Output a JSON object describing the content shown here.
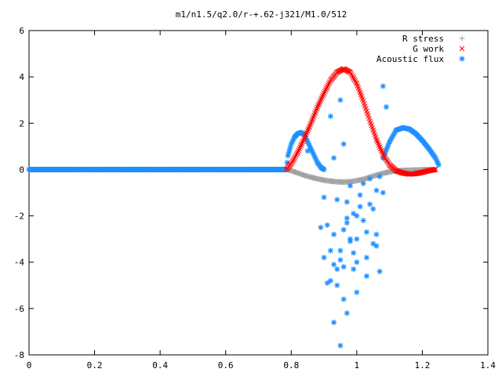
{
  "chart_data": {
    "type": "scatter",
    "title": "m1/n1.5/q2.0/r-+.62-j321/M1.0/512",
    "xlabel": "",
    "ylabel": "",
    "xlim": [
      0,
      1.4
    ],
    "ylim": [
      -8,
      6
    ],
    "x_ticks": [
      "0",
      "0.2",
      "0.4",
      "0.6",
      "0.8",
      "1",
      "1.2",
      "1.4"
    ],
    "y_ticks": [
      "-8",
      "-6",
      "-4",
      "-2",
      "0",
      "2",
      "4",
      "6"
    ],
    "grid": false,
    "legend_position": "top-right",
    "series": [
      {
        "name": "R stress",
        "marker": "plus",
        "color": "#a0a0a0",
        "shape": "baseline-zero-then-dip",
        "points_x": [
          0.0,
          0.785,
          0.8,
          0.82,
          0.84,
          0.86,
          0.88,
          0.9,
          0.92,
          0.94,
          0.96,
          0.98,
          1.0,
          1.02,
          1.04,
          1.06,
          1.08,
          1.1,
          1.12,
          1.14,
          1.16,
          1.18,
          1.2,
          1.22,
          1.24
        ],
        "points_y": [
          0.0,
          0.0,
          -0.05,
          -0.15,
          -0.25,
          -0.33,
          -0.4,
          -0.46,
          -0.5,
          -0.53,
          -0.54,
          -0.53,
          -0.48,
          -0.42,
          -0.33,
          -0.24,
          -0.16,
          -0.1,
          -0.06,
          -0.04,
          -0.03,
          -0.02,
          -0.01,
          0.0,
          0.0
        ]
      },
      {
        "name": "G work",
        "marker": "cross",
        "color": "#ff0000",
        "points_x": [
          0.785,
          0.8,
          0.82,
          0.84,
          0.86,
          0.88,
          0.9,
          0.92,
          0.94,
          0.96,
          0.98,
          1.0,
          1.02,
          1.04,
          1.06,
          1.08,
          1.1,
          1.12,
          1.14,
          1.16,
          1.18,
          1.2,
          1.22,
          1.24
        ],
        "points_y": [
          0.0,
          0.25,
          0.75,
          1.35,
          2.0,
          2.7,
          3.3,
          3.85,
          4.2,
          4.35,
          4.2,
          3.7,
          2.95,
          2.1,
          1.3,
          0.65,
          0.2,
          -0.05,
          -0.15,
          -0.2,
          -0.18,
          -0.12,
          -0.05,
          0.0
        ]
      },
      {
        "name": "Acoustic flux",
        "marker": "asterisk",
        "color": "#1e90ff",
        "curve_x": [
          0.0,
          0.785,
          0.79,
          0.8,
          0.81,
          0.82,
          0.83,
          0.84,
          0.85,
          0.86,
          0.87,
          0.88,
          0.89,
          0.9
        ],
        "curve_y": [
          0.0,
          0.0,
          0.6,
          1.1,
          1.4,
          1.55,
          1.6,
          1.5,
          1.2,
          0.9,
          0.6,
          0.3,
          0.1,
          0.0
        ],
        "curve2_x": [
          1.08,
          1.1,
          1.12,
          1.14,
          1.16,
          1.18,
          1.2,
          1.22,
          1.24,
          1.25
        ],
        "curve2_y": [
          0.5,
          1.2,
          1.7,
          1.8,
          1.75,
          1.55,
          1.25,
          0.9,
          0.5,
          0.2
        ],
        "scatter_x": [
          0.85,
          0.88,
          0.9,
          0.91,
          0.92,
          0.93,
          0.94,
          0.95,
          0.96,
          0.97,
          0.98,
          0.99,
          1.0,
          1.01,
          1.02,
          1.03,
          1.04,
          1.05,
          1.06,
          1.07,
          1.08,
          0.89,
          0.92,
          0.95,
          0.97,
          1.0,
          1.03,
          1.06,
          0.9,
          0.93,
          0.96,
          0.99,
          1.02,
          1.05,
          0.91,
          0.94,
          0.97,
          1.0,
          1.04,
          1.07,
          0.92,
          0.95,
          0.98,
          1.01,
          1.06,
          0.93,
          0.96,
          0.99,
          1.03,
          0.94,
          0.97,
          1.0,
          0.95,
          0.98,
          0.93,
          1.08,
          1.09,
          0.96
        ],
        "scatter_y": [
          0.8,
          0.3,
          -1.2,
          -2.4,
          -3.5,
          -4.1,
          -5.0,
          -3.9,
          -2.6,
          -1.4,
          -3.0,
          -4.3,
          -2.0,
          -1.1,
          -0.6,
          -2.7,
          -1.5,
          -3.2,
          -0.9,
          -4.4,
          -1.0,
          -2.5,
          2.3,
          3.0,
          -6.2,
          -5.3,
          -4.6,
          -3.3,
          -3.8,
          -2.8,
          -5.6,
          -3.6,
          -2.2,
          -1.7,
          -4.9,
          -4.3,
          -2.1,
          -4.0,
          -0.4,
          -0.3,
          -4.8,
          -3.5,
          -3.1,
          -1.6,
          -2.8,
          -6.6,
          -4.2,
          -1.9,
          -3.8,
          -1.3,
          -2.3,
          -3.0,
          -7.6,
          -0.7,
          0.5,
          3.6,
          2.7,
          1.1
        ]
      }
    ]
  }
}
